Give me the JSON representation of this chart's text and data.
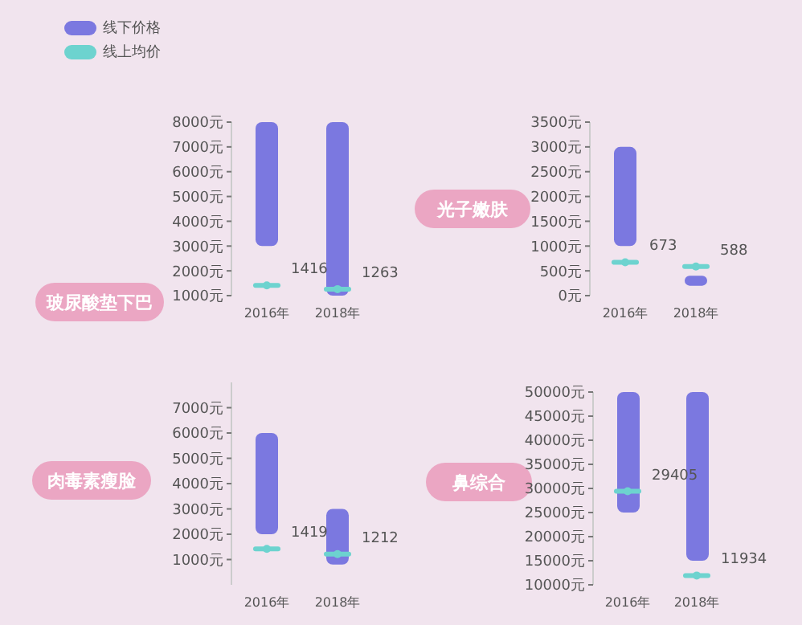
{
  "chart_data": [
    {
      "type": "bar",
      "title": "玻尿酸垫下巴",
      "categories": [
        "2016年",
        "2018年"
      ],
      "ylim": [
        1000,
        8000
      ],
      "yticks": [
        {
          "value": 1000,
          "label": "1000元"
        },
        {
          "value": 2000,
          "label": "2000元"
        },
        {
          "value": 3000,
          "label": "3000元"
        },
        {
          "value": 4000,
          "label": "4000元"
        },
        {
          "value": 5000,
          "label": "5000元"
        },
        {
          "value": 6000,
          "label": "6000元"
        },
        {
          "value": 7000,
          "label": "7000元"
        },
        {
          "value": 8000,
          "label": "8000元"
        }
      ],
      "legend": "top left",
      "grid": false,
      "series": [
        {
          "name": "线下价格",
          "color": "#7b78e0",
          "base": [
            3000,
            1000
          ],
          "values": [
            5000,
            7000
          ]
        },
        {
          "name": "线上均价",
          "type": "scatter",
          "color": "#6dd3cf",
          "values": [
            1416,
            1263
          ],
          "value_labels": [
            "1416",
            "1263"
          ]
        }
      ]
    },
    {
      "type": "bar",
      "title": "光子嫩肤",
      "categories": [
        "2016年",
        "2018年"
      ],
      "ylim": [
        0,
        3500
      ],
      "yticks": [
        {
          "value": 0,
          "label": "0元"
        },
        {
          "value": 500,
          "label": "500元"
        },
        {
          "value": 1000,
          "label": "1000元"
        },
        {
          "value": 1500,
          "label": "1500元"
        },
        {
          "value": 2000,
          "label": "2000元"
        },
        {
          "value": 2500,
          "label": "2500元"
        },
        {
          "value": 3000,
          "label": "3000元"
        },
        {
          "value": 3500,
          "label": "3500元"
        }
      ],
      "legend": false,
      "grid": false,
      "series": [
        {
          "color": "#7b78e0",
          "base": [
            1000,
            200
          ],
          "values": [
            2000,
            200
          ]
        },
        {
          "type": "scatter",
          "color": "#6dd3cf",
          "values": [
            673,
            588
          ],
          "value_labels": [
            "673",
            "588"
          ]
        }
      ]
    },
    {
      "type": "bar",
      "title": "肉毒素瘦脸",
      "categories": [
        "2016年",
        "2018年"
      ],
      "ylim": [
        0,
        8000
      ],
      "yticks": [
        {
          "value": 1000,
          "label": "1000元"
        },
        {
          "value": 2000,
          "label": "2000元"
        },
        {
          "value": 3000,
          "label": "3000元"
        },
        {
          "value": 4000,
          "label": "4000元"
        },
        {
          "value": 5000,
          "label": "5000元"
        },
        {
          "value": 6000,
          "label": "6000元"
        },
        {
          "value": 7000,
          "label": "7000元"
        }
      ],
      "legend": false,
      "grid": false,
      "series": [
        {
          "color": "#7b78e0",
          "base": [
            2000,
            800
          ],
          "values": [
            4000,
            2200
          ]
        },
        {
          "type": "scatter",
          "color": "#6dd3cf",
          "values": [
            1419,
            1212
          ],
          "value_labels": [
            "1419",
            "1212"
          ]
        }
      ]
    },
    {
      "type": "bar",
      "title": "鼻综合",
      "categories": [
        "2016年",
        "2018年"
      ],
      "ylim": [
        10000,
        50000
      ],
      "yticks": [
        {
          "value": 10000,
          "label": "10000元"
        },
        {
          "value": 15000,
          "label": "15000元"
        },
        {
          "value": 20000,
          "label": "20000元"
        },
        {
          "value": 25000,
          "label": "25000元"
        },
        {
          "value": 30000,
          "label": "30000元"
        },
        {
          "value": 35000,
          "label": "35000元"
        },
        {
          "value": 40000,
          "label": "40000元"
        },
        {
          "value": 45000,
          "label": "45000元"
        },
        {
          "value": 50000,
          "label": "50000元"
        }
      ],
      "legend": false,
      "grid": false,
      "series": [
        {
          "color": "#7b78e0",
          "base": [
            25000,
            15000
          ],
          "values": [
            25000,
            35000
          ]
        },
        {
          "type": "scatter",
          "color": "#6dd3cf",
          "values": [
            29405,
            11934
          ],
          "value_labels": [
            "29405",
            "11934"
          ]
        }
      ]
    }
  ]
}
